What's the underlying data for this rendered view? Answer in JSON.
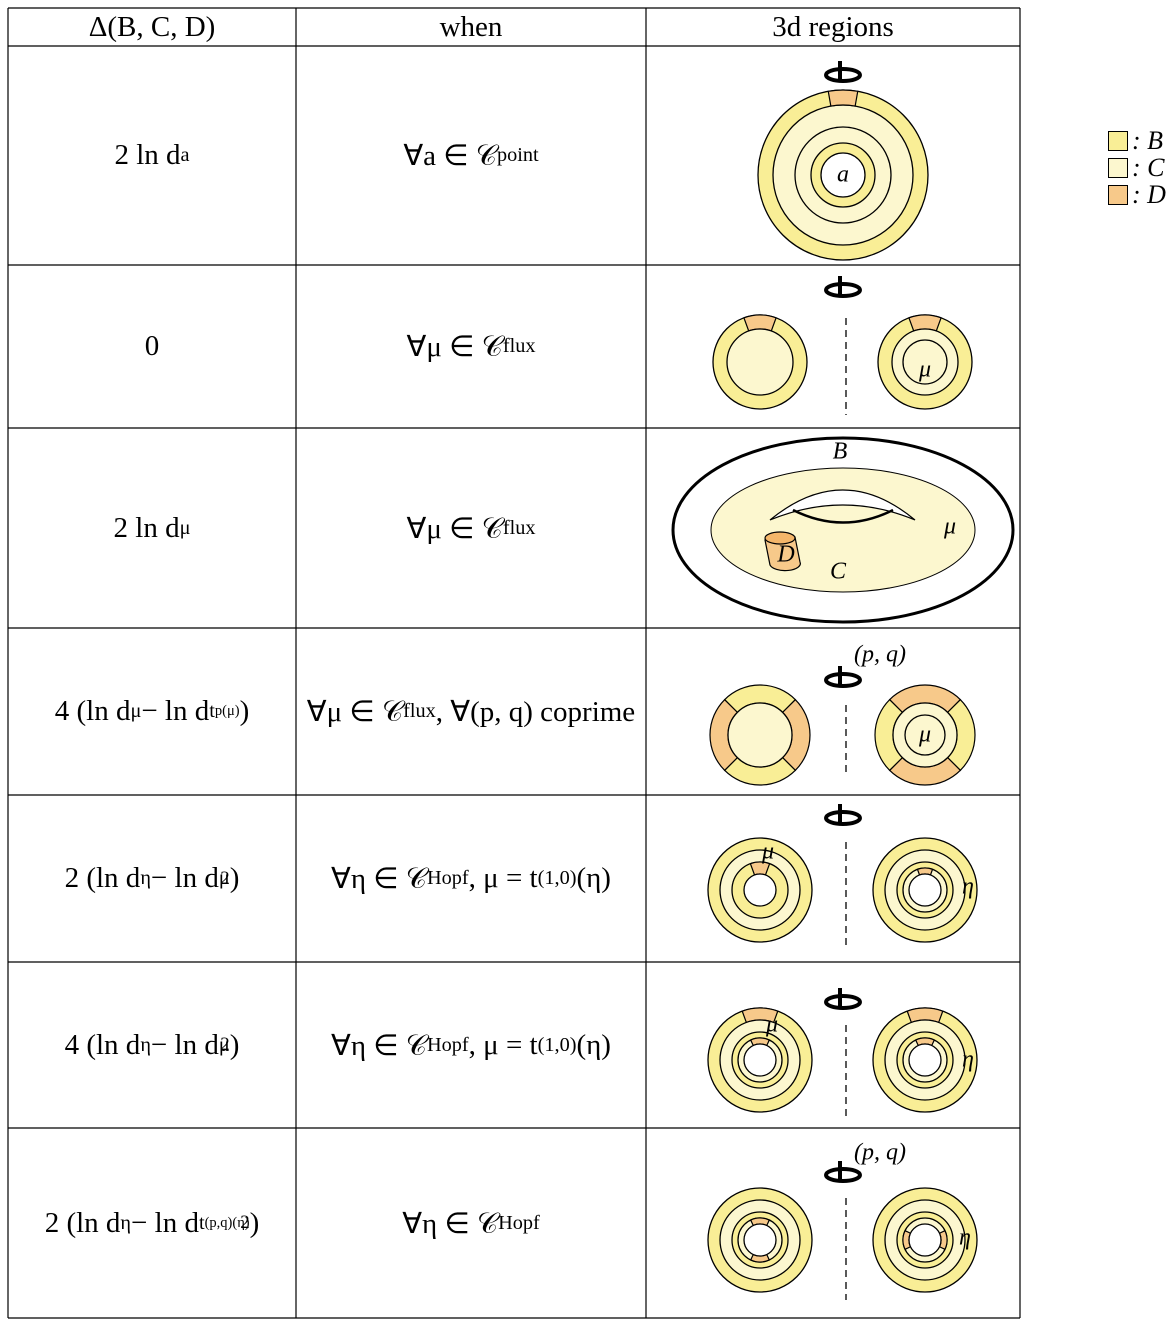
{
  "table": {
    "header": [
      "Δ(B, C, D)",
      "when",
      "3d regions"
    ],
    "rows": [
      {
        "delta": [
          {
            "text": "2 ln d"
          },
          {
            "text": "a",
            "style": "sub"
          }
        ],
        "when": [
          {
            "text": "∀a ∈ 𝒞"
          },
          {
            "text": "point",
            "style": "sub"
          }
        ],
        "labels": [
          "a"
        ]
      },
      {
        "delta": [
          {
            "text": "0"
          }
        ],
        "when": [
          {
            "text": "∀μ ∈ 𝒞"
          },
          {
            "text": "flux",
            "style": "sub"
          }
        ],
        "labels": [
          "μ"
        ]
      },
      {
        "delta": [
          {
            "text": "2 ln d"
          },
          {
            "text": "μ",
            "style": "sub"
          }
        ],
        "when": [
          {
            "text": "∀μ ∈ 𝒞"
          },
          {
            "text": "flux",
            "style": "sub"
          }
        ],
        "labels": [
          "B",
          "μ",
          "D",
          "C"
        ]
      },
      {
        "delta": [
          {
            "text": "4 (ln d"
          },
          {
            "text": "μ",
            "style": "sub"
          },
          {
            "text": " − ln d"
          },
          {
            "text": "t",
            "style": "sub"
          },
          {
            "text": "p(μ)",
            "style": "subsub"
          },
          {
            "text": ")"
          }
        ],
        "when": [
          {
            "text": "∀μ ∈ 𝒞"
          },
          {
            "text": "flux",
            "style": "sub"
          },
          {
            "text": ", ∀(p, q) coprime"
          }
        ],
        "labels": [
          "(p, q)",
          "μ"
        ]
      },
      {
        "delta": [
          {
            "text": "2 (ln d"
          },
          {
            "text": "η",
            "style": "sub"
          },
          {
            "text": " − ln d"
          },
          {
            "text": "μ",
            "style": "sub"
          },
          {
            "text": "2",
            "style": "sup"
          },
          {
            "text": ")"
          }
        ],
        "when": [
          {
            "text": "∀η ∈ 𝒞"
          },
          {
            "text": "Hopf",
            "style": "sub"
          },
          {
            "text": ", μ = t"
          },
          {
            "text": "(1,0)",
            "style": "sub"
          },
          {
            "text": "(η)"
          }
        ],
        "labels": [
          "μ",
          "η"
        ]
      },
      {
        "delta": [
          {
            "text": "4 (ln d"
          },
          {
            "text": "η",
            "style": "sub"
          },
          {
            "text": " − ln d"
          },
          {
            "text": "μ",
            "style": "sub"
          },
          {
            "text": "2",
            "style": "sup"
          },
          {
            "text": ")"
          }
        ],
        "when": [
          {
            "text": "∀η ∈ 𝒞"
          },
          {
            "text": "Hopf",
            "style": "sub"
          },
          {
            "text": ", μ = t"
          },
          {
            "text": "(1,0)",
            "style": "sub"
          },
          {
            "text": "(η)"
          }
        ],
        "labels": [
          "μ",
          "η"
        ]
      },
      {
        "delta": [
          {
            "text": "2 (ln d"
          },
          {
            "text": "η",
            "style": "sub"
          },
          {
            "text": " − ln d"
          },
          {
            "text": "t",
            "style": "sub"
          },
          {
            "text": "(p,q)(η)",
            "style": "subsub"
          },
          {
            "text": "2",
            "style": "sup"
          },
          {
            "text": ")"
          }
        ],
        "when": [
          {
            "text": "∀η ∈ 𝒞"
          },
          {
            "text": "Hopf",
            "style": "sub"
          }
        ],
        "labels": [
          "(p, q)",
          "η"
        ]
      }
    ]
  },
  "legend": [
    {
      "color": "#f9ee96",
      "label": ": B"
    },
    {
      "color": "#fcf7cf",
      "label": ": C"
    },
    {
      "color": "#f7c98a",
      "label": ": D"
    }
  ]
}
